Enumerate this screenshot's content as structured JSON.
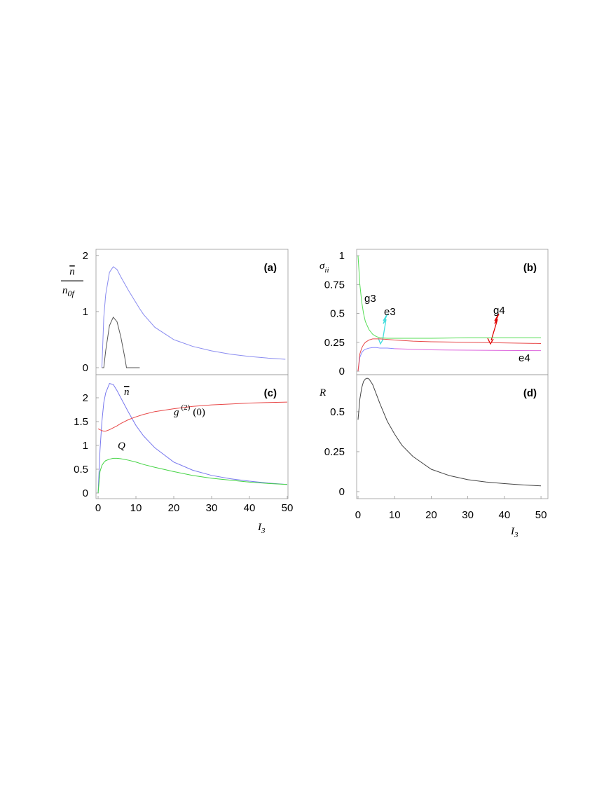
{
  "chart_data": [
    {
      "type": "line",
      "label": "(a)",
      "ylabel": {
        "numerator": "n",
        "denominator": "n",
        "denominator_sub": "0f"
      },
      "x": [
        0,
        0.5,
        1,
        1.5,
        2,
        3,
        4,
        5,
        6,
        7,
        7.5,
        8,
        11,
        12,
        15,
        20,
        25,
        30,
        35,
        40,
        45,
        49.5
      ],
      "xlim": [
        -0.56,
        50.19
      ],
      "ylim": [
        -0.125,
        2.11
      ],
      "yticks": [
        0,
        1,
        2
      ],
      "series": [
        {
          "color": "#8a8cf0",
          "values": [
            null,
            null,
            0,
            0.9,
            1.3,
            1.7,
            1.8,
            1.75,
            1.62,
            1.5,
            1.44,
            1.38,
            1.05,
            0.95,
            0.72,
            0.5,
            0.38,
            0.3,
            0.24,
            0.2,
            0.17,
            0.15
          ]
        },
        {
          "color": "#555555",
          "values": [
            null,
            null,
            0,
            0,
            0.3,
            0.75,
            0.9,
            0.82,
            0.55,
            0.2,
            0,
            0,
            0,
            null,
            null,
            null,
            null,
            null,
            null,
            null,
            null,
            null
          ]
        }
      ]
    },
    {
      "type": "line",
      "label": "(b)",
      "ylabel": {
        "base": "σ",
        "sub": "ii"
      },
      "x": [
        0,
        0.5,
        1,
        1.5,
        2,
        3,
        4,
        5,
        6,
        8,
        10,
        15,
        20,
        30,
        40,
        50
      ],
      "xlim": [
        -0.38,
        51.9
      ],
      "ylim": [
        -0.03,
        1.055
      ],
      "yticks": [
        0,
        0.25,
        0.5,
        0.75,
        1
      ],
      "series": [
        {
          "name": "g3",
          "color": "#55dd55",
          "label_color": "#44dd44",
          "values": [
            1.0,
            0.75,
            0.6,
            0.5,
            0.43,
            0.36,
            0.32,
            0.3,
            0.29,
            0.285,
            0.285,
            0.285,
            0.285,
            0.29,
            0.29,
            0.29
          ]
        },
        {
          "name": "e3",
          "color": "#8888ff",
          "label_color": "#44dddd",
          "values": [
            0,
            0.12,
            0.16,
            0.18,
            0.19,
            0.2,
            0.205,
            0.205,
            0.2,
            0.2,
            0.195,
            null,
            null,
            null,
            null,
            null
          ]
        },
        {
          "name": "g4",
          "color": "#e84848",
          "label_color": "#e00000",
          "values": [
            0,
            0.15,
            0.2,
            0.23,
            0.25,
            0.27,
            0.28,
            0.28,
            0.28,
            0.275,
            0.27,
            0.26,
            0.255,
            0.25,
            0.245,
            0.24
          ]
        },
        {
          "name": "e4",
          "color": "#dd66dd",
          "label_color": "#9900cc",
          "values": [
            null,
            null,
            null,
            null,
            null,
            null,
            null,
            null,
            null,
            null,
            0.195,
            0.19,
            0.185,
            0.182,
            0.18,
            0.178
          ]
        }
      ]
    },
    {
      "type": "line",
      "label": "(c)",
      "xlabel": {
        "base": "I",
        "sub": "3"
      },
      "x": [
        0,
        0.5,
        1,
        1.5,
        2,
        3,
        4,
        5,
        6,
        8,
        10,
        12,
        15,
        20,
        25,
        30,
        35,
        40,
        45,
        50
      ],
      "xlim": [
        -0.56,
        50.19
      ],
      "ylim": [
        -0.118,
        2.485
      ],
      "xticks": [
        0,
        10,
        20,
        30,
        40,
        50
      ],
      "yticks": [
        0,
        0.5,
        1,
        1.5,
        2
      ],
      "series": [
        {
          "name": "n",
          "color": "#7878ee",
          "label_color": "#3333ff",
          "values": [
            0,
            0.9,
            1.5,
            1.9,
            2.1,
            2.3,
            2.28,
            2.15,
            2.0,
            1.7,
            1.42,
            1.2,
            0.95,
            0.65,
            0.48,
            0.37,
            0.3,
            0.25,
            0.21,
            0.18
          ]
        },
        {
          "name": "g",
          "name_sup": "(2)",
          "name_rest": "(0)",
          "color": "#e84848",
          "label_color": "#e00000",
          "values": [
            1.35,
            1.33,
            1.31,
            1.3,
            1.3,
            1.33,
            1.37,
            1.41,
            1.46,
            1.54,
            1.6,
            1.65,
            1.71,
            1.77,
            1.82,
            1.85,
            1.87,
            1.89,
            1.9,
            1.91
          ]
        },
        {
          "name": "Q",
          "color": "#44d444",
          "label_color": "#33dd33",
          "values": [
            0,
            0.45,
            0.58,
            0.64,
            0.68,
            0.71,
            0.73,
            0.73,
            0.72,
            0.69,
            0.65,
            0.6,
            0.54,
            0.45,
            0.37,
            0.31,
            0.27,
            0.23,
            0.2,
            0.18
          ]
        }
      ]
    },
    {
      "type": "line",
      "label": "(d)",
      "ylabel": {
        "base": "R"
      },
      "xlabel": {
        "base": "I",
        "sub": "3"
      },
      "x": [
        0,
        0.5,
        1,
        1.5,
        2,
        2.5,
        3,
        4,
        5,
        6,
        8,
        10,
        12,
        15,
        20,
        25,
        30,
        35,
        40,
        45,
        50
      ],
      "xlim": [
        -0.38,
        51.9
      ],
      "ylim": [
        -0.044,
        0.732
      ],
      "xticks": [
        0,
        10,
        20,
        30,
        40,
        50
      ],
      "yticks": [
        0,
        0.25,
        0.5
      ],
      "series": [
        {
          "color": "#444444",
          "values": [
            0.45,
            0.58,
            0.65,
            0.69,
            0.705,
            0.71,
            0.705,
            0.67,
            0.61,
            0.55,
            0.44,
            0.36,
            0.29,
            0.22,
            0.14,
            0.1,
            0.075,
            0.06,
            0.05,
            0.042,
            0.036
          ]
        }
      ]
    }
  ]
}
